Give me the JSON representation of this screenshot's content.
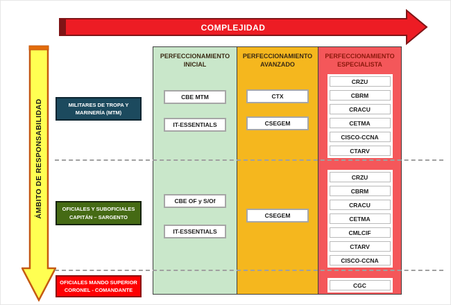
{
  "axes": {
    "complexity_label": "COMPLEJIDAD",
    "responsibility_label": "ÁMBITO DE RESPONSABILIDAD"
  },
  "columns": [
    {
      "title_line1": "PERFECCIONAMIENTO",
      "title_line2": "INICIAL",
      "color": "#c9e7ca"
    },
    {
      "title_line1": "PERFECCIONAMIENTO",
      "title_line2": "AVANZADO",
      "color": "#f5b71e"
    },
    {
      "title_line1": "PERFECCIONAMIENTO",
      "title_line2": "ESPECIALISTA",
      "color": "#f4575a"
    }
  ],
  "rows": [
    {
      "label_line1": "MILITARES DE TROPA Y",
      "label_line2": "MARINERÍA (MTM)",
      "color": "#1c4a5e"
    },
    {
      "label_line1": "OFICIALES Y SUBOFICIALES",
      "label_line2": "CAPITÁN – SARGENTO",
      "color": "#456a14"
    },
    {
      "label_line1": "OFICIALES MANDO SUPERIOR",
      "label_line2": "CORONEL - COMANDANTE",
      "color": "#fd0002"
    }
  ],
  "courses": {
    "inicial_mtm": [
      "CBE MTM",
      "IT-ESSENTIALS"
    ],
    "inicial_oficiales": [
      "CBE OF y S/Of",
      "IT-ESSENTIALS"
    ],
    "avanzado_mtm": [
      "CTX",
      "CSEGEM"
    ],
    "avanzado_oficiales": [
      "CSEGEM"
    ],
    "especialista_mtm": [
      "CRZU",
      "CBRM",
      "CRACU",
      "CETMA",
      "CISCO-CCNA",
      "CTARV"
    ],
    "especialista_oficiales": [
      "CRZU",
      "CBRM",
      "CRACU",
      "CETMA",
      "CMLCIF",
      "CTARV",
      "CISCO-CCNA"
    ],
    "especialista_mando": [
      "CGC"
    ]
  },
  "colors": {
    "complexity_arrow": "#ed1c24",
    "complexity_arrow_border": "#7f1416",
    "responsibility_arrow": "#ffff52",
    "responsibility_arrow_border": "#c55a11",
    "dashed_separator": "#a0a0a0",
    "course_box_bg": "#ffffff",
    "course_box_border": "#a6a6a6"
  }
}
